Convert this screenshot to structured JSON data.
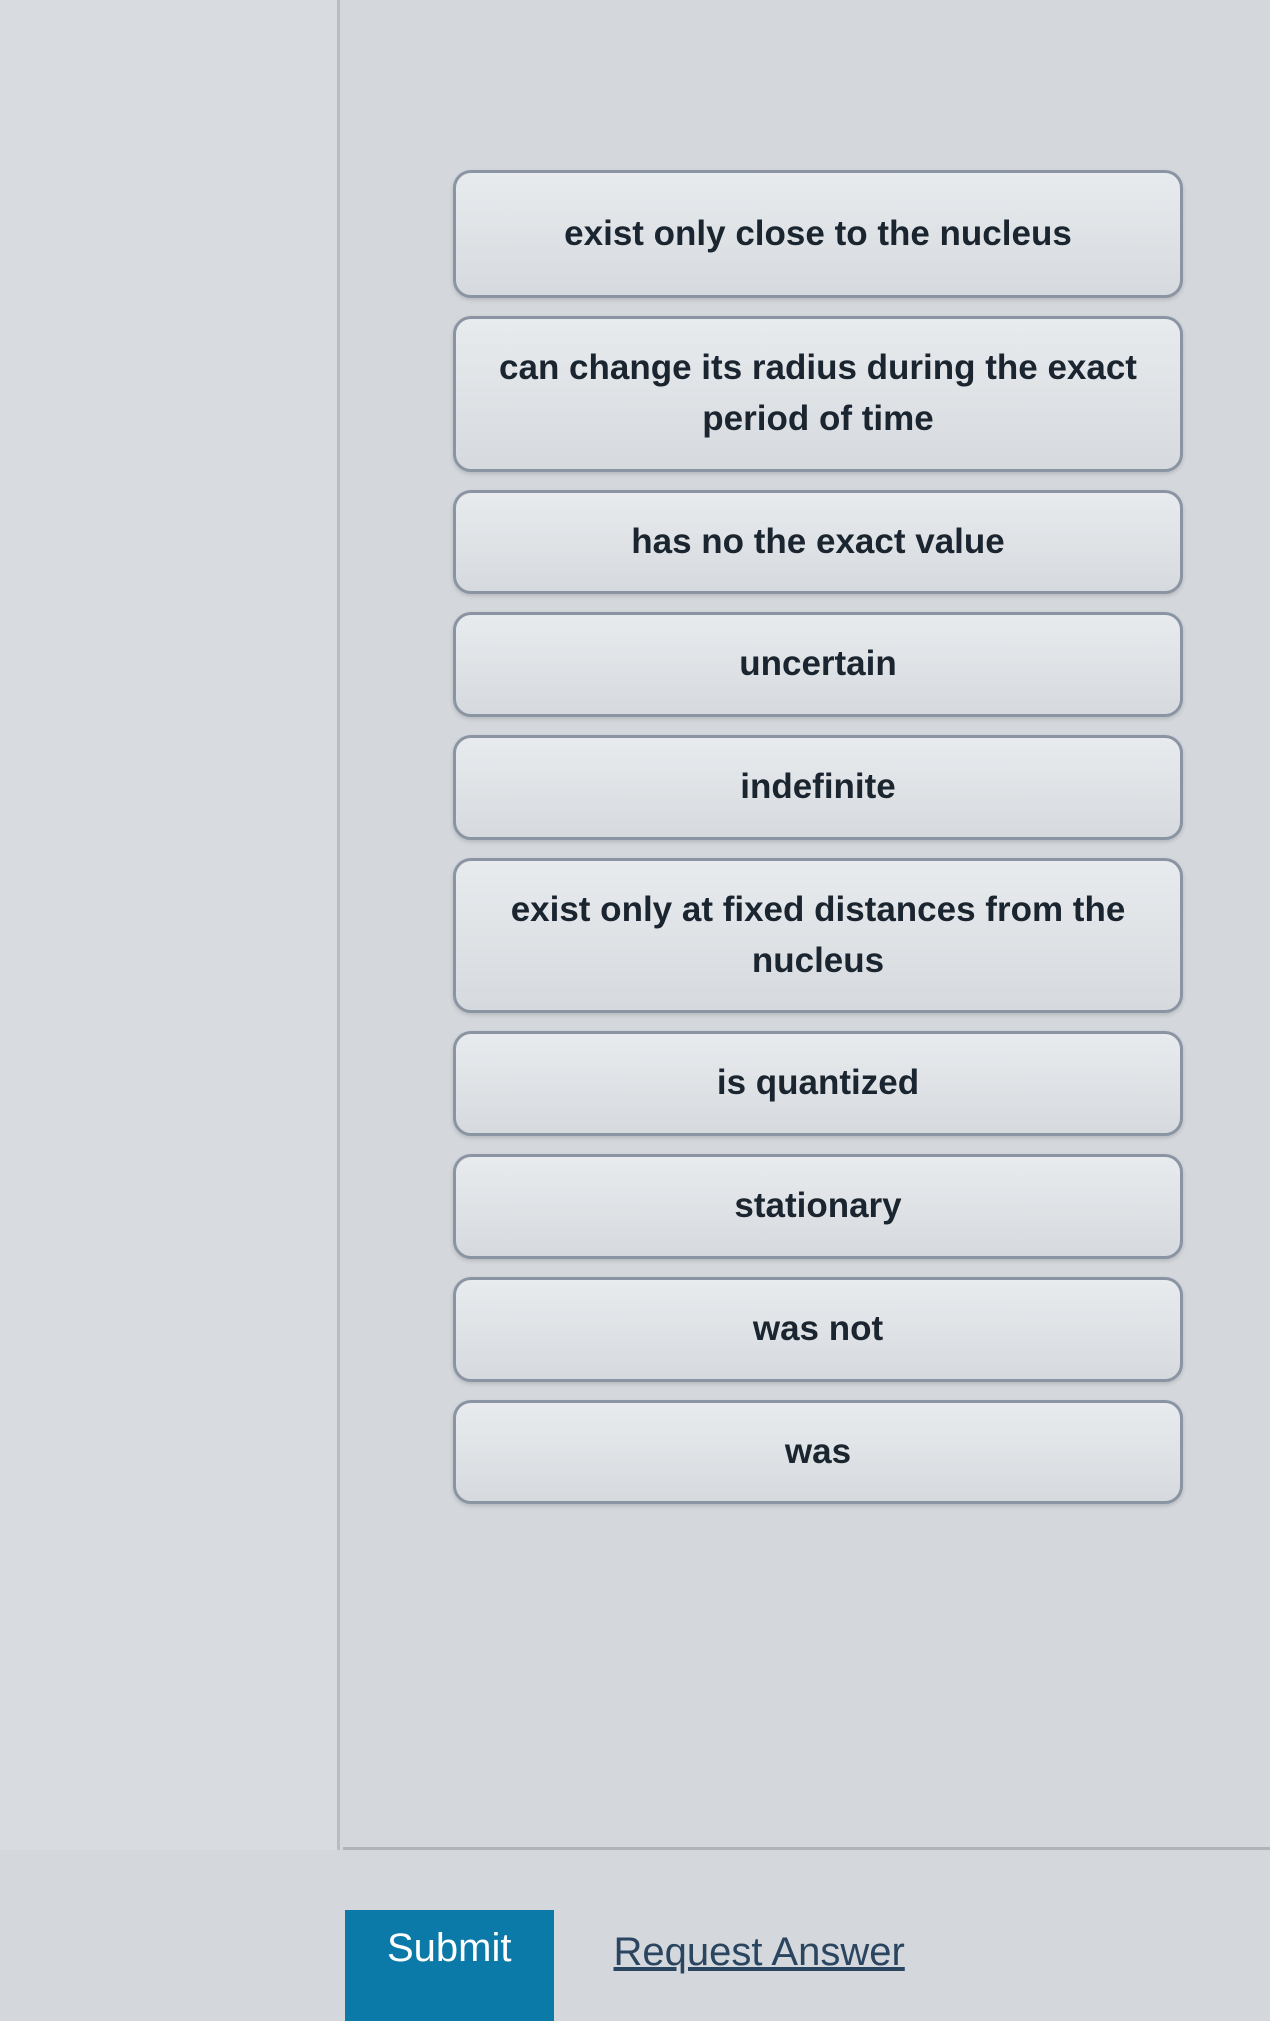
{
  "options": [
    {
      "label": "exist only close to the nucleus",
      "twoLine": true
    },
    {
      "label": "can change its radius during the exact period of time",
      "twoLine": true
    },
    {
      "label": "has no the exact value",
      "twoLine": false
    },
    {
      "label": "uncertain",
      "twoLine": false
    },
    {
      "label": "indefinite",
      "twoLine": false
    },
    {
      "label": "exist only at fixed distances from the nucleus",
      "twoLine": true
    },
    {
      "label": "is quantized",
      "twoLine": false
    },
    {
      "label": "stationary",
      "twoLine": false
    },
    {
      "label": "was not",
      "twoLine": false
    },
    {
      "label": "was",
      "twoLine": false
    }
  ],
  "actions": {
    "submit_label": "Submit",
    "request_label": "Request Answer"
  },
  "styling": {
    "tile_bg_top": "#e8ebee",
    "tile_bg_bottom": "#d6dade",
    "tile_border": "#8a94a2",
    "tile_border_radius": 18,
    "tile_font_size": 35,
    "tile_text_color": "#1a2530",
    "submit_bg": "#0b7aa8",
    "submit_text_color": "#ffffff",
    "request_text_color": "#2a4560",
    "page_bg": "#d4d8dc",
    "left_panel_bg": "#d8dce0",
    "divider_color": "#b8bcc0"
  }
}
